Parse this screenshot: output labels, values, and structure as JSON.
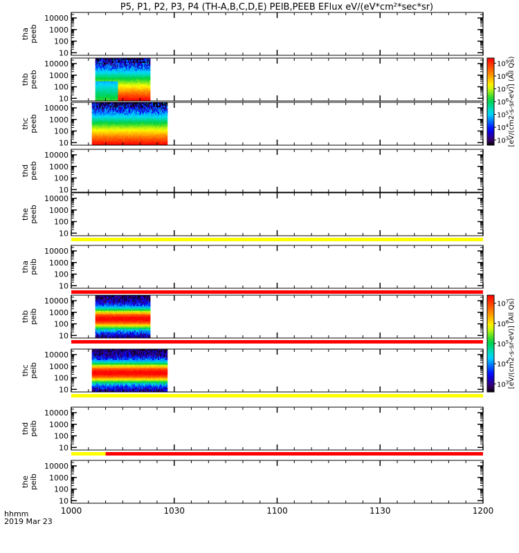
{
  "chart_data": {
    "type": "heatmap",
    "title": "P5, P1, P2, P3, P4 (TH-A,B,C,D,E) PEIB,PEEB EFlux eV/(eV*cm²*sec*sr)",
    "x_axis": {
      "label_line1": "hhmm",
      "label_line2": "2019 Mar 23",
      "ticks": [
        "1000",
        "1030",
        "1100",
        "1130",
        "1200"
      ],
      "tick_minutes": [
        0,
        30,
        60,
        90,
        120
      ],
      "range_minutes": [
        0,
        120
      ],
      "minor_tick_step_minutes": 5
    },
    "y_axis": {
      "scale": "log",
      "range": [
        6,
        30000
      ],
      "ticks": [
        10,
        100,
        1000,
        10000
      ],
      "tick_labels": [
        "10",
        "100",
        "1000",
        "10000"
      ]
    },
    "panels": [
      {
        "probe": "tha",
        "instrument": "peeb",
        "data": null
      },
      {
        "probe": "thb",
        "instrument": "peeb",
        "data": {
          "start_min": 7,
          "end_min": 23,
          "profile": "electron",
          "lo_frac": 0.7,
          "gap_min": 13.5
        }
      },
      {
        "probe": "thc",
        "instrument": "peeb",
        "data": {
          "start_min": 6,
          "end_min": 28,
          "profile": "electron",
          "lo_frac": 0.25,
          "gap_min": null
        }
      },
      {
        "probe": "thd",
        "instrument": "peeb",
        "data": null
      },
      {
        "probe": "the",
        "instrument": "peeb",
        "data": null
      },
      {
        "probe": "tha",
        "instrument": "peib",
        "data": null
      },
      {
        "probe": "thb",
        "instrument": "peib",
        "data": {
          "start_min": 7,
          "end_min": 23,
          "profile": "ion",
          "lo_frac": 0.2,
          "gap_min": null
        }
      },
      {
        "probe": "thc",
        "instrument": "peib",
        "data": {
          "start_min": 6,
          "end_min": 28,
          "profile": "ion",
          "lo_frac": 0.2,
          "gap_min": null
        }
      },
      {
        "probe": "thd",
        "instrument": "peib",
        "data": null
      },
      {
        "probe": "the",
        "instrument": "peib",
        "data": null
      }
    ],
    "status_bars": [
      {
        "after_panel": 4,
        "segments": [
          {
            "from_min": 0,
            "to_min": 120,
            "color": "#ffff00"
          }
        ]
      },
      {
        "after_panel": 5,
        "segments": [
          {
            "from_min": 0,
            "to_min": 120,
            "color": "#ff0000"
          }
        ]
      },
      {
        "after_panel": 6,
        "segments": [
          {
            "from_min": 0,
            "to_min": 120,
            "color": "#ff0000"
          }
        ]
      },
      {
        "after_panel": 7,
        "segments": [
          {
            "from_min": 0,
            "to_min": 120,
            "color": "#ffff00"
          }
        ]
      },
      {
        "after_panel": 8,
        "segments": [
          {
            "from_min": 0,
            "to_min": 10,
            "color": "#ffff00"
          },
          {
            "from_min": 10,
            "to_min": 120,
            "color": "#ff0000"
          }
        ]
      }
    ],
    "colorbars": [
      {
        "group": "PEEB",
        "top_panel": 1,
        "bottom_panel": 2,
        "range_exp": [
          2.6,
          9.4
        ],
        "ticks": [
          {
            "base": "10",
            "exp": "3",
            "value_exp": 3
          },
          {
            "base": "10",
            "exp": "4",
            "value_exp": 4
          },
          {
            "base": "10",
            "exp": "5",
            "value_exp": 5
          },
          {
            "base": "10",
            "exp": "6",
            "value_exp": 6
          },
          {
            "base": "10",
            "exp": "7",
            "value_exp": 7
          },
          {
            "base": "10",
            "exp": "8",
            "value_exp": 8
          },
          {
            "base": "10",
            "exp": "9",
            "value_exp": 9
          }
        ],
        "label": "[eV/(cm2-s-sr-eV)]",
        "units": "eV/(cm2-s-sr-eV)",
        "tag": "(All Qs)"
      },
      {
        "group": "PEIB",
        "top_panel": 6,
        "bottom_panel": 7,
        "range_exp": [
          2.6,
          7.4
        ],
        "ticks": [
          {
            "base": "10",
            "exp": "3",
            "value_exp": 3
          },
          {
            "base": "10",
            "exp": "4",
            "value_exp": 4
          },
          {
            "base": "10",
            "exp": "5",
            "value_exp": 5
          },
          {
            "base": "10",
            "exp": "6",
            "value_exp": 6
          },
          {
            "base": "10",
            "exp": "7",
            "value_exp": 7
          }
        ],
        "label": "[eV/(cm2-s-sr-eV)]",
        "units": "eV/(cm2-s-sr-eV)",
        "tag": "(All Qs)"
      }
    ]
  }
}
